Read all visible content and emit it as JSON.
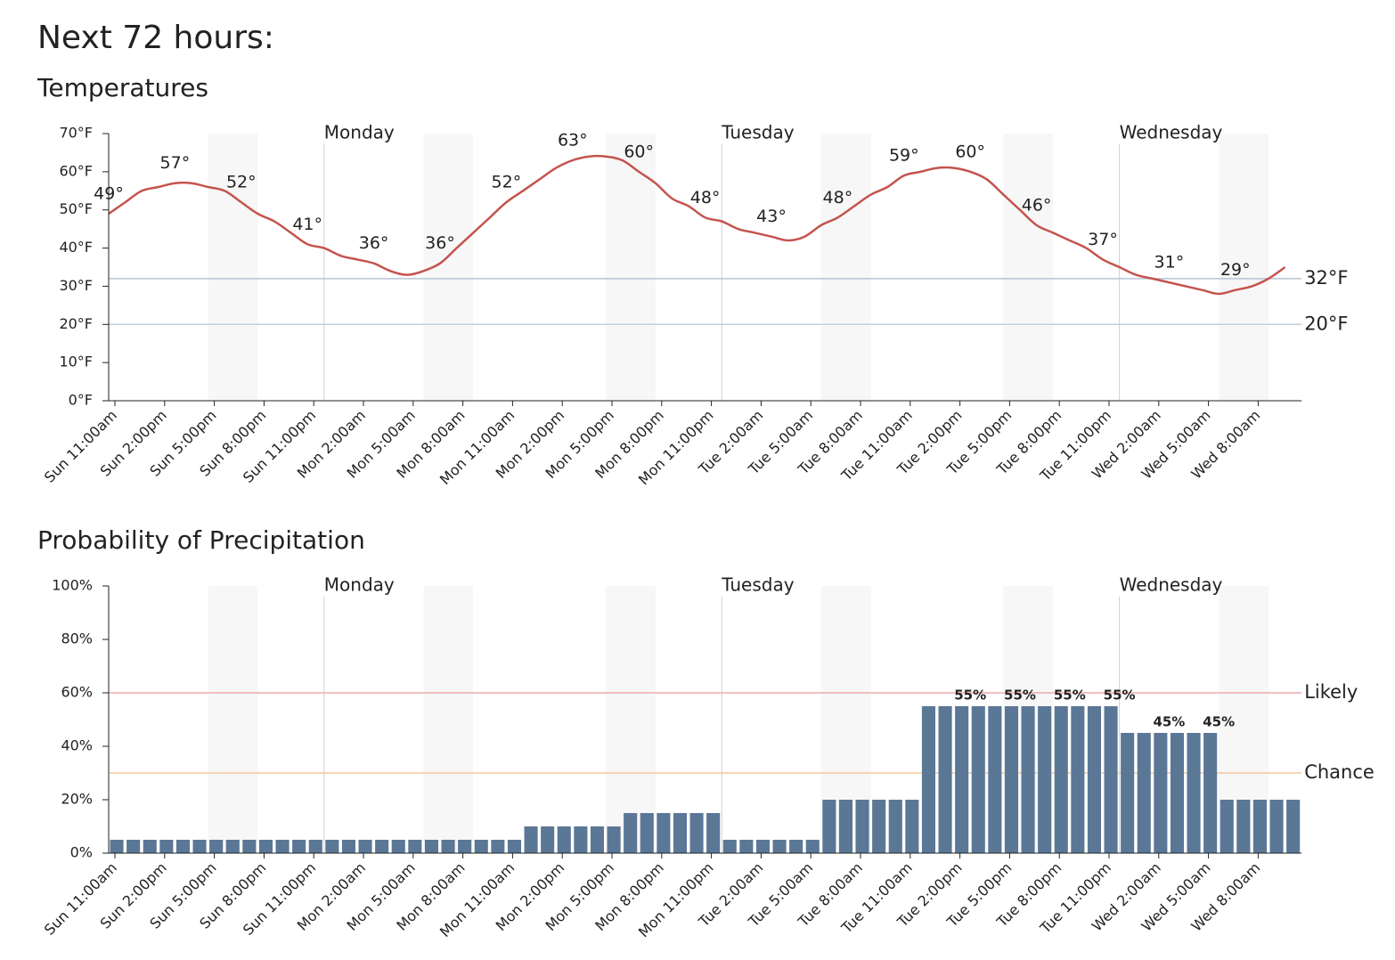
{
  "title": "Next 72 hours:",
  "chart_data": [
    {
      "type": "line",
      "title": "Temperatures",
      "color": "#c4544f",
      "categories": [
        "Sun 11:00am",
        null,
        null,
        "Sun 2:00pm",
        null,
        null,
        "Sun 5:00pm",
        null,
        null,
        "Sun 8:00pm",
        null,
        null,
        "Sun 11:00pm",
        null,
        null,
        "Mon 2:00am",
        null,
        null,
        "Mon 5:00am",
        null,
        null,
        "Mon 8:00am",
        null,
        null,
        "Mon 11:00am",
        null,
        null,
        "Mon 2:00pm",
        null,
        null,
        "Mon 5:00pm",
        null,
        null,
        "Mon 8:00pm",
        null,
        null,
        "Mon 11:00pm",
        null,
        null,
        "Tue 2:00am",
        null,
        null,
        "Tue 5:00am",
        null,
        null,
        "Tue 8:00am",
        null,
        null,
        "Tue 11:00am",
        null,
        null,
        "Tue 2:00pm",
        null,
        null,
        "Tue 5:00pm",
        null,
        null,
        "Tue 8:00pm",
        null,
        null,
        "Tue 11:00pm",
        null,
        null,
        "Wed 2:00am",
        null,
        null,
        "Wed 5:00am",
        null,
        null,
        "Wed 8:00am",
        null,
        null
      ],
      "values": [
        49,
        52,
        55,
        56,
        57,
        57,
        56,
        55,
        52,
        49,
        47,
        44,
        41,
        40,
        38,
        37,
        36,
        34,
        33,
        34,
        36,
        40,
        44,
        48,
        52,
        55,
        58,
        61,
        63,
        64,
        64,
        63,
        60,
        57,
        53,
        51,
        48,
        47,
        45,
        44,
        43,
        42,
        43,
        46,
        48,
        51,
        54,
        56,
        59,
        60,
        61,
        61,
        60,
        58,
        54,
        50,
        46,
        44,
        42,
        40,
        37,
        35,
        33,
        32,
        31,
        30,
        29,
        28,
        29,
        30,
        32,
        35
      ],
      "value_labels": [
        "49°",
        null,
        null,
        null,
        "57°",
        null,
        null,
        null,
        "52°",
        null,
        null,
        null,
        "41°",
        null,
        null,
        null,
        "36°",
        null,
        null,
        null,
        "36°",
        null,
        null,
        null,
        "52°",
        null,
        null,
        null,
        "63°",
        null,
        null,
        null,
        "60°",
        null,
        null,
        null,
        "48°",
        null,
        null,
        null,
        "43°",
        null,
        null,
        null,
        "48°",
        null,
        null,
        null,
        "59°",
        null,
        null,
        null,
        "60°",
        null,
        null,
        null,
        "46°",
        null,
        null,
        null,
        "37°",
        null,
        null,
        null,
        "31°",
        null,
        null,
        null,
        "29°",
        null,
        null,
        null
      ],
      "ylim": [
        0,
        70
      ],
      "yticks": [
        {
          "value": 0,
          "label": "0°F"
        },
        {
          "value": 10,
          "label": "10°F"
        },
        {
          "value": 20,
          "label": "20°F"
        },
        {
          "value": 30,
          "label": "30°F"
        },
        {
          "value": 40,
          "label": "40°F"
        },
        {
          "value": 50,
          "label": "50°F"
        },
        {
          "value": 60,
          "label": "60°F"
        },
        {
          "value": 70,
          "label": "70°F"
        }
      ],
      "reference_lines": [
        {
          "value": 32,
          "label": "32°F",
          "color": "#b4c4d4",
          "text_color": "#2a3a4a"
        },
        {
          "value": 20,
          "label": "20°F",
          "color": "#c4d0dc",
          "text_color": "#2a3a4a"
        }
      ],
      "day_markers": [
        {
          "label": "Monday",
          "index": 13
        },
        {
          "label": "Tuesday",
          "index": 37
        },
        {
          "label": "Wednesday",
          "index": 61
        }
      ]
    },
    {
      "type": "bar",
      "title": "Probability of Precipitation",
      "color": "#5b7796",
      "categories": [
        "Sun 11:00am",
        null,
        null,
        "Sun 2:00pm",
        null,
        null,
        "Sun 5:00pm",
        null,
        null,
        "Sun 8:00pm",
        null,
        null,
        "Sun 11:00pm",
        null,
        null,
        "Mon 2:00am",
        null,
        null,
        "Mon 5:00am",
        null,
        null,
        "Mon 8:00am",
        null,
        null,
        "Mon 11:00am",
        null,
        null,
        "Mon 2:00pm",
        null,
        null,
        "Mon 5:00pm",
        null,
        null,
        "Mon 8:00pm",
        null,
        null,
        "Mon 11:00pm",
        null,
        null,
        "Tue 2:00am",
        null,
        null,
        "Tue 5:00am",
        null,
        null,
        "Tue 8:00am",
        null,
        null,
        "Tue 11:00am",
        null,
        null,
        "Tue 2:00pm",
        null,
        null,
        "Tue 5:00pm",
        null,
        null,
        "Tue 8:00pm",
        null,
        null,
        "Tue 11:00pm",
        null,
        null,
        "Wed 2:00am",
        null,
        null,
        "Wed 5:00am",
        null,
        null,
        "Wed 8:00am",
        null,
        null
      ],
      "values": [
        5,
        5,
        5,
        5,
        5,
        5,
        5,
        5,
        5,
        5,
        5,
        5,
        5,
        5,
        5,
        5,
        5,
        5,
        5,
        5,
        5,
        5,
        5,
        5,
        5,
        10,
        10,
        10,
        10,
        10,
        10,
        15,
        15,
        15,
        15,
        15,
        15,
        5,
        5,
        5,
        5,
        5,
        5,
        20,
        20,
        20,
        20,
        20,
        20,
        55,
        55,
        55,
        55,
        55,
        55,
        55,
        55,
        55,
        55,
        55,
        55,
        45,
        45,
        45,
        45,
        45,
        45,
        20,
        20,
        20,
        20,
        20
      ],
      "value_labels": [
        null,
        null,
        null,
        null,
        null,
        null,
        null,
        null,
        null,
        null,
        null,
        null,
        null,
        null,
        null,
        null,
        null,
        null,
        null,
        null,
        null,
        null,
        null,
        null,
        null,
        null,
        null,
        null,
        null,
        null,
        null,
        null,
        null,
        null,
        null,
        null,
        null,
        null,
        null,
        null,
        null,
        null,
        null,
        null,
        null,
        null,
        null,
        null,
        null,
        null,
        null,
        "55%",
        null,
        null,
        "55%",
        null,
        null,
        "55%",
        null,
        null,
        "55%",
        null,
        null,
        "45%",
        null,
        null,
        "45%",
        null,
        null,
        null,
        null,
        null
      ],
      "ylim": [
        0,
        100
      ],
      "yticks": [
        {
          "value": 0,
          "label": "0%"
        },
        {
          "value": 20,
          "label": "20%"
        },
        {
          "value": 40,
          "label": "40%"
        },
        {
          "value": 60,
          "label": "60%"
        },
        {
          "value": 80,
          "label": "80%"
        },
        {
          "value": 100,
          "label": "100%"
        }
      ],
      "reference_lines": [
        {
          "value": 60,
          "label": "Likely",
          "color": "#f2a9a9",
          "text_color": "#5a1818"
        },
        {
          "value": 30,
          "label": "Chance",
          "color": "#f5c998",
          "text_color": "#4a2a08"
        }
      ],
      "day_markers": [
        {
          "label": "Monday",
          "index": 13
        },
        {
          "label": "Tuesday",
          "index": 37
        },
        {
          "label": "Wednesday",
          "index": 61
        }
      ]
    }
  ]
}
